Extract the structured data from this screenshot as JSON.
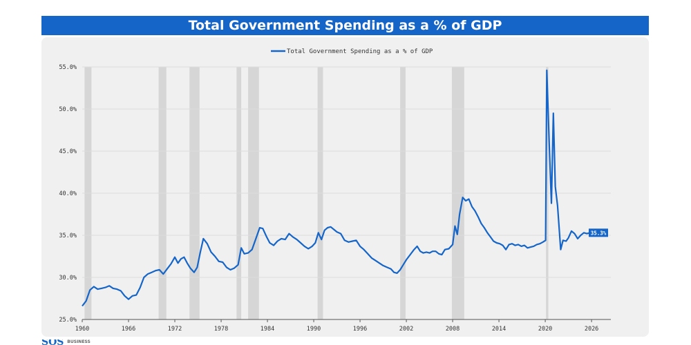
{
  "chart_data": {
    "type": "line",
    "title": "Total Government Spending as a % of GDP",
    "legend": {
      "label": "Total Government Spending as a % of GDP",
      "placement": "top-center"
    },
    "xlabel": "",
    "ylabel": "",
    "xlim": [
      1960,
      2028.5
    ],
    "ylim": [
      25,
      55
    ],
    "x_ticks": [
      1960,
      1966,
      1972,
      1978,
      1984,
      1990,
      1996,
      2002,
      2008,
      2014,
      2020,
      2026
    ],
    "y_ticks": [
      {
        "value": 25,
        "label": "25.0%"
      },
      {
        "value": 30,
        "label": "30.0%"
      },
      {
        "value": 35,
        "label": "35.0%"
      },
      {
        "value": 40,
        "label": "40.0%"
      },
      {
        "value": 45,
        "label": "45.0%"
      },
      {
        "value": 50,
        "label": "50.0%"
      },
      {
        "value": 55,
        "label": "55.0%"
      }
    ],
    "recessions": [
      [
        1960.3,
        1961.2
      ],
      [
        1969.9,
        1970.9
      ],
      [
        1973.9,
        1975.2
      ],
      [
        1980.0,
        1980.6
      ],
      [
        1981.5,
        1982.9
      ],
      [
        1990.5,
        1991.2
      ],
      [
        2001.2,
        2001.9
      ],
      [
        2007.9,
        2009.5
      ],
      [
        2020.1,
        2020.4
      ]
    ],
    "series": [
      {
        "name": "Total Government Spending as a % of GDP",
        "color": "#1565c8",
        "points": [
          [
            1960.0,
            26.6
          ],
          [
            1960.5,
            27.2
          ],
          [
            1961.0,
            28.5
          ],
          [
            1961.5,
            28.9
          ],
          [
            1962.0,
            28.6
          ],
          [
            1962.5,
            28.7
          ],
          [
            1963.0,
            28.8
          ],
          [
            1963.5,
            29.0
          ],
          [
            1964.0,
            28.7
          ],
          [
            1964.5,
            28.6
          ],
          [
            1965.0,
            28.4
          ],
          [
            1965.5,
            27.8
          ],
          [
            1966.0,
            27.4
          ],
          [
            1966.5,
            27.8
          ],
          [
            1967.0,
            27.9
          ],
          [
            1967.5,
            28.8
          ],
          [
            1968.0,
            30.0
          ],
          [
            1968.5,
            30.4
          ],
          [
            1969.0,
            30.6
          ],
          [
            1969.5,
            30.8
          ],
          [
            1970.0,
            30.9
          ],
          [
            1970.5,
            30.4
          ],
          [
            1971.0,
            31.0
          ],
          [
            1971.5,
            31.6
          ],
          [
            1972.0,
            32.4
          ],
          [
            1972.4,
            31.7
          ],
          [
            1972.8,
            32.2
          ],
          [
            1973.2,
            32.4
          ],
          [
            1973.6,
            31.7
          ],
          [
            1974.0,
            31.1
          ],
          [
            1974.5,
            30.6
          ],
          [
            1974.9,
            31.2
          ],
          [
            1975.3,
            33.0
          ],
          [
            1975.7,
            34.6
          ],
          [
            1976.2,
            34.0
          ],
          [
            1976.7,
            33.0
          ],
          [
            1977.2,
            32.5
          ],
          [
            1977.7,
            31.9
          ],
          [
            1978.2,
            31.8
          ],
          [
            1978.7,
            31.2
          ],
          [
            1979.2,
            30.9
          ],
          [
            1979.7,
            31.1
          ],
          [
            1980.2,
            31.5
          ],
          [
            1980.6,
            33.5
          ],
          [
            1981.0,
            32.8
          ],
          [
            1981.5,
            32.9
          ],
          [
            1982.0,
            33.3
          ],
          [
            1982.5,
            34.6
          ],
          [
            1983.0,
            35.9
          ],
          [
            1983.4,
            35.8
          ],
          [
            1983.9,
            34.8
          ],
          [
            1984.3,
            34.1
          ],
          [
            1984.8,
            33.8
          ],
          [
            1985.3,
            34.3
          ],
          [
            1985.8,
            34.6
          ],
          [
            1986.3,
            34.5
          ],
          [
            1986.8,
            35.2
          ],
          [
            1987.3,
            34.8
          ],
          [
            1987.8,
            34.5
          ],
          [
            1988.3,
            34.1
          ],
          [
            1988.8,
            33.7
          ],
          [
            1989.3,
            33.4
          ],
          [
            1989.8,
            33.7
          ],
          [
            1990.2,
            34.1
          ],
          [
            1990.6,
            35.3
          ],
          [
            1991.0,
            34.5
          ],
          [
            1991.4,
            35.6
          ],
          [
            1991.8,
            35.9
          ],
          [
            1992.2,
            36.0
          ],
          [
            1992.6,
            35.7
          ],
          [
            1993.0,
            35.4
          ],
          [
            1993.5,
            35.2
          ],
          [
            1994.0,
            34.4
          ],
          [
            1994.5,
            34.2
          ],
          [
            1995.0,
            34.3
          ],
          [
            1995.5,
            34.4
          ],
          [
            1996.0,
            33.7
          ],
          [
            1996.5,
            33.3
          ],
          [
            1997.0,
            32.8
          ],
          [
            1997.5,
            32.3
          ],
          [
            1998.0,
            32.0
          ],
          [
            1998.5,
            31.7
          ],
          [
            1999.0,
            31.4
          ],
          [
            1999.5,
            31.2
          ],
          [
            2000.0,
            31.0
          ],
          [
            2000.4,
            30.6
          ],
          [
            2000.8,
            30.5
          ],
          [
            2001.2,
            30.9
          ],
          [
            2001.6,
            31.5
          ],
          [
            2002.0,
            32.1
          ],
          [
            2002.5,
            32.7
          ],
          [
            2003.0,
            33.3
          ],
          [
            2003.4,
            33.7
          ],
          [
            2003.8,
            33.1
          ],
          [
            2004.2,
            32.9
          ],
          [
            2004.6,
            33.0
          ],
          [
            2005.0,
            32.9
          ],
          [
            2005.4,
            33.1
          ],
          [
            2005.8,
            33.1
          ],
          [
            2006.2,
            32.8
          ],
          [
            2006.6,
            32.7
          ],
          [
            2007.0,
            33.3
          ],
          [
            2007.5,
            33.4
          ],
          [
            2008.0,
            33.9
          ],
          [
            2008.3,
            36.1
          ],
          [
            2008.6,
            35.1
          ],
          [
            2008.9,
            37.5
          ],
          [
            2009.3,
            39.5
          ],
          [
            2009.7,
            39.1
          ],
          [
            2010.1,
            39.3
          ],
          [
            2010.5,
            38.4
          ],
          [
            2010.9,
            37.9
          ],
          [
            2011.3,
            37.2
          ],
          [
            2011.7,
            36.4
          ],
          [
            2012.1,
            35.9
          ],
          [
            2012.5,
            35.3
          ],
          [
            2012.9,
            34.8
          ],
          [
            2013.3,
            34.3
          ],
          [
            2013.7,
            34.1
          ],
          [
            2014.1,
            34.0
          ],
          [
            2014.5,
            33.8
          ],
          [
            2014.9,
            33.3
          ],
          [
            2015.3,
            33.9
          ],
          [
            2015.7,
            34.0
          ],
          [
            2016.1,
            33.8
          ],
          [
            2016.5,
            33.9
          ],
          [
            2016.9,
            33.7
          ],
          [
            2017.3,
            33.8
          ],
          [
            2017.7,
            33.5
          ],
          [
            2018.1,
            33.6
          ],
          [
            2018.5,
            33.7
          ],
          [
            2018.9,
            33.9
          ],
          [
            2019.3,
            34.0
          ],
          [
            2019.7,
            34.2
          ],
          [
            2020.05,
            34.4
          ],
          [
            2020.2,
            54.6
          ],
          [
            2020.55,
            45.0
          ],
          [
            2020.8,
            38.8
          ],
          [
            2021.05,
            49.5
          ],
          [
            2021.3,
            40.8
          ],
          [
            2021.6,
            38.5
          ],
          [
            2022.0,
            33.3
          ],
          [
            2022.3,
            34.4
          ],
          [
            2022.7,
            34.3
          ],
          [
            2023.0,
            34.7
          ],
          [
            2023.4,
            35.5
          ],
          [
            2023.8,
            35.2
          ],
          [
            2024.2,
            34.6
          ],
          [
            2024.6,
            35.0
          ],
          [
            2025.0,
            35.3
          ],
          [
            2025.4,
            35.2
          ],
          [
            2025.8,
            35.3
          ]
        ],
        "last_value_label": "35.3%"
      }
    ]
  },
  "footer": {
    "logo_text": "SOS",
    "logo_subtext": "BUSINESS"
  }
}
